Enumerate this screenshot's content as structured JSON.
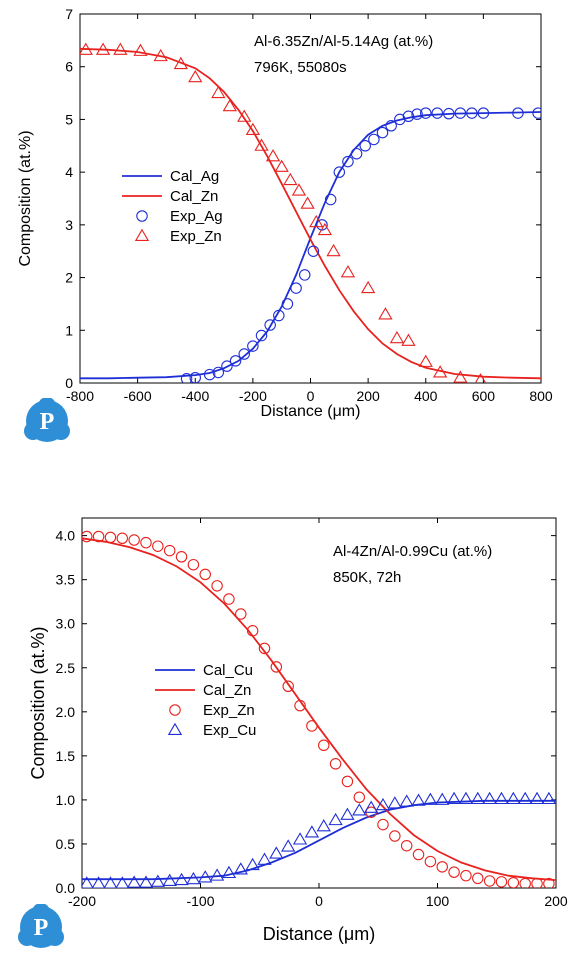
{
  "colors": {
    "blue": "#1f2fd6",
    "red": "#e8231f",
    "logo": "#2f8fd6"
  },
  "logo": {
    "icon": "p-logo-icon",
    "letter": "P"
  },
  "chart_data": [
    {
      "type": "line",
      "annotation_lines": [
        "Al-6.35Zn/Al-5.14Ag (at.%)",
        "796K, 55080s"
      ],
      "xlabel": "Distance (μm)",
      "ylabel": "Composition (at.%)",
      "xlim": [
        -800,
        800
      ],
      "ylim": [
        0,
        7
      ],
      "xticks": [
        -800,
        -600,
        -400,
        -200,
        0,
        200,
        400,
        600,
        800
      ],
      "yticks": [
        0,
        1,
        2,
        3,
        4,
        5,
        6,
        7
      ],
      "legend_position": "middle-left",
      "legend": [
        {
          "label": "Cal_Ag",
          "kind": "line",
          "color": "blue"
        },
        {
          "label": "Cal_Zn",
          "kind": "line",
          "color": "red"
        },
        {
          "label": "Exp_Ag",
          "kind": "circle",
          "color": "blue"
        },
        {
          "label": "Exp_Zn",
          "kind": "triangle",
          "color": "red"
        }
      ],
      "series": [
        {
          "name": "Cal_Ag",
          "kind": "line",
          "color": "blue",
          "x": [
            -800,
            -700,
            -600,
            -500,
            -400,
            -350,
            -300,
            -250,
            -200,
            -150,
            -100,
            -50,
            0,
            50,
            100,
            150,
            200,
            250,
            300,
            350,
            400,
            500,
            600,
            700,
            800
          ],
          "y": [
            0.09,
            0.09,
            0.1,
            0.11,
            0.15,
            0.19,
            0.28,
            0.42,
            0.65,
            0.98,
            1.45,
            2.05,
            2.75,
            3.42,
            4.0,
            4.42,
            4.71,
            4.88,
            4.98,
            5.04,
            5.08,
            5.11,
            5.12,
            5.13,
            5.14
          ]
        },
        {
          "name": "Cal_Zn",
          "kind": "line",
          "color": "red",
          "x": [
            -800,
            -700,
            -600,
            -500,
            -400,
            -350,
            -300,
            -250,
            -200,
            -150,
            -100,
            -50,
            0,
            50,
            100,
            150,
            200,
            250,
            300,
            350,
            400,
            500,
            600,
            700,
            800
          ],
          "y": [
            6.34,
            6.32,
            6.28,
            6.18,
            5.97,
            5.78,
            5.52,
            5.18,
            4.78,
            4.3,
            3.78,
            3.25,
            2.72,
            2.22,
            1.76,
            1.36,
            1.02,
            0.75,
            0.55,
            0.4,
            0.29,
            0.17,
            0.12,
            0.1,
            0.09
          ]
        },
        {
          "name": "Exp_Ag",
          "kind": "circle",
          "color": "blue",
          "x": [
            -430,
            -400,
            -350,
            -320,
            -290,
            -260,
            -230,
            -200,
            -170,
            -140,
            -110,
            -80,
            -50,
            -20,
            10,
            40,
            70,
            100,
            130,
            160,
            190,
            220,
            250,
            280,
            310,
            340,
            370,
            400,
            440,
            480,
            520,
            560,
            600,
            720,
            790
          ],
          "y": [
            0.08,
            0.1,
            0.16,
            0.2,
            0.32,
            0.42,
            0.55,
            0.7,
            0.9,
            1.1,
            1.28,
            1.5,
            1.8,
            2.05,
            2.5,
            3.0,
            3.48,
            4.0,
            4.2,
            4.35,
            4.5,
            4.62,
            4.75,
            4.88,
            5.0,
            5.06,
            5.1,
            5.12,
            5.12,
            5.11,
            5.12,
            5.12,
            5.12,
            5.12,
            5.12
          ]
        },
        {
          "name": "Exp_Zn",
          "kind": "triangle",
          "color": "red",
          "x": [
            -780,
            -720,
            -660,
            -590,
            -520,
            -450,
            -400,
            -320,
            -280,
            -230,
            -200,
            -170,
            -130,
            -100,
            -70,
            -40,
            -10,
            20,
            50,
            80,
            130,
            200,
            260,
            300,
            340,
            400,
            450,
            520,
            590
          ],
          "y": [
            6.32,
            6.32,
            6.32,
            6.3,
            6.2,
            6.05,
            5.8,
            5.5,
            5.25,
            5.05,
            4.8,
            4.5,
            4.3,
            4.1,
            3.85,
            3.65,
            3.4,
            3.05,
            2.9,
            2.5,
            2.1,
            1.8,
            1.3,
            0.85,
            0.8,
            0.4,
            0.2,
            0.1,
            0.05
          ]
        }
      ]
    },
    {
      "type": "line",
      "annotation_lines": [
        "Al-4Zn/Al-0.99Cu (at.%)",
        "850K, 72h"
      ],
      "xlabel": "Distance (μm)",
      "ylabel": "Composition (at.%)",
      "xlim": [
        -200,
        200
      ],
      "ylim": [
        0,
        4.2
      ],
      "xticks": [
        -200,
        -100,
        0,
        100,
        200
      ],
      "yticks": [
        0.0,
        0.5,
        1.0,
        1.5,
        2.0,
        2.5,
        3.0,
        3.5,
        4.0
      ],
      "ytick_labels": [
        "0.0",
        "0.5",
        "1.0",
        "1.5",
        "2.0",
        "2.5",
        "3.0",
        "3.5",
        "4.0"
      ],
      "legend_position": "middle-left",
      "legend": [
        {
          "label": "Cal_Cu",
          "kind": "line",
          "color": "blue"
        },
        {
          "label": "Cal_Zn",
          "kind": "line",
          "color": "red"
        },
        {
          "label": "Exp_Zn",
          "kind": "circle",
          "color": "red"
        },
        {
          "label": "Exp_Cu",
          "kind": "triangle",
          "color": "blue"
        }
      ],
      "series": [
        {
          "name": "Cal_Cu",
          "kind": "line",
          "color": "blue",
          "x": [
            -200,
            -180,
            -160,
            -140,
            -120,
            -100,
            -80,
            -60,
            -40,
            -20,
            0,
            20,
            40,
            60,
            80,
            100,
            120,
            140,
            160,
            180,
            200
          ],
          "y": [
            0.1,
            0.1,
            0.1,
            0.1,
            0.11,
            0.12,
            0.14,
            0.2,
            0.29,
            0.4,
            0.54,
            0.68,
            0.8,
            0.89,
            0.94,
            0.97,
            0.98,
            0.99,
            0.99,
            0.99,
            0.99
          ]
        },
        {
          "name": "Cal_Zn",
          "kind": "line",
          "color": "red",
          "x": [
            -200,
            -180,
            -160,
            -140,
            -120,
            -100,
            -80,
            -60,
            -40,
            -20,
            0,
            20,
            40,
            60,
            80,
            100,
            120,
            140,
            160,
            180,
            200
          ],
          "y": [
            3.97,
            3.93,
            3.87,
            3.78,
            3.65,
            3.47,
            3.23,
            2.93,
            2.58,
            2.2,
            1.82,
            1.46,
            1.12,
            0.84,
            0.6,
            0.42,
            0.29,
            0.2,
            0.14,
            0.11,
            0.09
          ]
        },
        {
          "name": "Exp_Zn",
          "kind": "circle",
          "color": "red",
          "x": [
            -196,
            -186,
            -176,
            -166,
            -156,
            -146,
            -136,
            -126,
            -116,
            -106,
            -96,
            -86,
            -76,
            -66,
            -56,
            -46,
            -36,
            -26,
            -16,
            -6,
            4,
            14,
            24,
            34,
            44,
            54,
            64,
            74,
            84,
            94,
            104,
            114,
            124,
            134,
            144,
            154,
            164,
            174,
            184,
            194
          ],
          "y": [
            3.99,
            3.99,
            3.98,
            3.97,
            3.95,
            3.92,
            3.88,
            3.83,
            3.76,
            3.67,
            3.56,
            3.43,
            3.28,
            3.11,
            2.92,
            2.72,
            2.51,
            2.29,
            2.07,
            1.84,
            1.62,
            1.41,
            1.21,
            1.03,
            0.86,
            0.72,
            0.59,
            0.48,
            0.38,
            0.3,
            0.24,
            0.18,
            0.14,
            0.11,
            0.08,
            0.07,
            0.06,
            0.05,
            0.05,
            0.05
          ]
        },
        {
          "name": "Exp_Cu",
          "kind": "triangle",
          "color": "blue",
          "x": [
            -196,
            -186,
            -176,
            -166,
            -156,
            -146,
            -136,
            -126,
            -116,
            -106,
            -96,
            -86,
            -76,
            -66,
            -56,
            -46,
            -36,
            -26,
            -16,
            -6,
            4,
            14,
            24,
            34,
            44,
            54,
            64,
            74,
            84,
            94,
            104,
            114,
            124,
            134,
            144,
            154,
            164,
            174,
            184,
            194
          ],
          "y": [
            0.05,
            0.05,
            0.05,
            0.05,
            0.06,
            0.06,
            0.07,
            0.08,
            0.09,
            0.1,
            0.12,
            0.14,
            0.17,
            0.21,
            0.26,
            0.32,
            0.39,
            0.47,
            0.55,
            0.63,
            0.7,
            0.77,
            0.83,
            0.88,
            0.91,
            0.94,
            0.96,
            0.98,
            0.99,
            1.0,
            1.0,
            1.01,
            1.01,
            1.01,
            1.01,
            1.01,
            1.01,
            1.01,
            1.01,
            1.01
          ]
        }
      ]
    }
  ]
}
